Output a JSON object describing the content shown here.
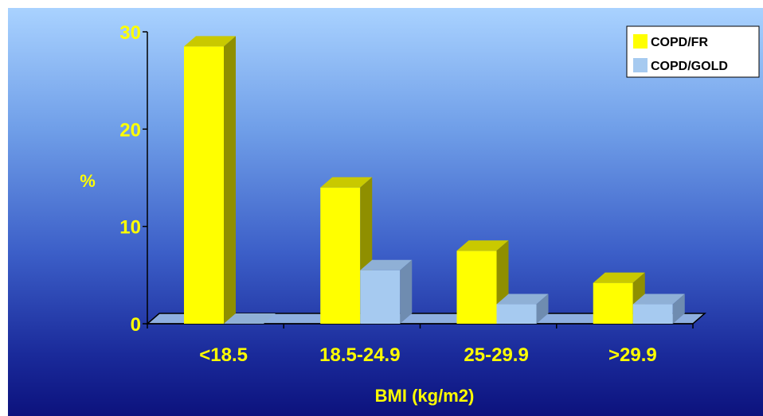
{
  "chart_data": {
    "type": "bar",
    "categories": [
      "<18.5",
      "18.5-24.9",
      "25-29.9",
      ">29.9"
    ],
    "series": [
      {
        "name": "COPD/FR",
        "values": [
          28.5,
          14,
          7.5,
          4.2
        ]
      },
      {
        "name": "COPD/GOLD",
        "values": [
          0,
          5.5,
          2,
          2
        ]
      }
    ],
    "title": "",
    "xlabel": "BMI (kg/m2)",
    "ylabel": "%",
    "ylim": [
      0,
      30
    ],
    "yticks": [
      "0",
      "10",
      "20",
      "30"
    ],
    "grid": false,
    "legend_position": "top-right",
    "three_d": true,
    "colors": {
      "series_fill": [
        "#ffff00",
        "#a6caf0"
      ],
      "series_top": [
        "#c9c900",
        "#8fb0d6"
      ],
      "series_side": [
        "#8f8f00",
        "#6f8cb0"
      ],
      "text": "#ffff00",
      "axis": "#000000",
      "floor": "#8fb0e0",
      "legend_bg": "#ffffff"
    }
  }
}
